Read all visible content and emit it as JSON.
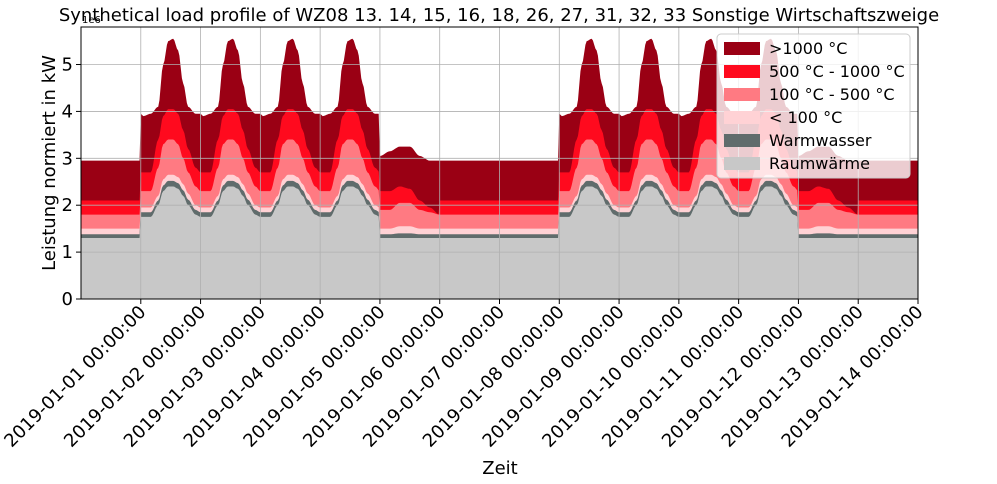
{
  "chart_data": {
    "type": "area",
    "stacked": true,
    "title": "Synthetical load profile of WZ08 13. 14, 15, 16, 18, 26, 27, 31, 32, 33 Sonstige Wirtschaftszweige",
    "xlabel": "Zeit",
    "ylabel": "Leistung normiert in kW",
    "y_scale_label": "1e6",
    "ylim": [
      0,
      5.8
    ],
    "yticks": [
      0,
      1,
      2,
      3,
      4,
      5
    ],
    "xticks": [
      "2019-01-01 00:00:00",
      "2019-01-02 00:00:00",
      "2019-01-03 00:00:00",
      "2019-01-04 00:00:00",
      "2019-01-05 00:00:00",
      "2019-01-06 00:00:00",
      "2019-01-07 00:00:00",
      "2019-01-08 00:00:00",
      "2019-01-09 00:00:00",
      "2019-01-10 00:00:00",
      "2019-01-11 00:00:00",
      "2019-01-12 00:00:00",
      "2019-01-13 00:00:00",
      "2019-01-14 00:00:00"
    ],
    "x_range": [
      "2018-12-31 00:00:00",
      "2019-01-14 00:00:00"
    ],
    "grid": true,
    "legend_position": "top-right",
    "day_profile_weekday": {
      "cumulative_tops_at_hours": [
        0,
        1,
        4,
        7,
        9,
        11,
        13,
        15,
        17,
        19,
        22,
        24
      ],
      "Raumwärme": [
        1.75,
        1.75,
        1.75,
        2.0,
        2.3,
        2.4,
        2.4,
        2.35,
        2.2,
        2.0,
        1.8,
        1.75
      ],
      "Warmwasser": [
        1.85,
        1.85,
        1.85,
        2.1,
        2.42,
        2.52,
        2.52,
        2.47,
        2.32,
        2.12,
        1.9,
        1.85
      ],
      "< 100 °C": [
        1.95,
        1.95,
        1.95,
        2.2,
        2.55,
        2.65,
        2.65,
        2.6,
        2.45,
        2.25,
        2.0,
        1.95
      ],
      "100 °C - 500 °C": [
        2.3,
        2.3,
        2.3,
        2.8,
        3.3,
        3.4,
        3.4,
        3.3,
        3.0,
        2.7,
        2.4,
        2.3
      ],
      "500 °C - 1000 °C": [
        2.7,
        2.7,
        2.7,
        3.4,
        3.9,
        4.05,
        4.05,
        3.95,
        3.6,
        3.2,
        2.8,
        2.7
      ],
      ">1000 °C": [
        3.95,
        3.9,
        3.95,
        4.1,
        5.0,
        5.5,
        5.55,
        5.3,
        4.6,
        4.1,
        3.95,
        3.95
      ]
    },
    "day_profile_saturday": {
      "cumulative_tops_at_hours": [
        0,
        4,
        8,
        12,
        16,
        20,
        24
      ],
      "Raumwärme": [
        1.3,
        1.3,
        1.3,
        1.3,
        1.3,
        1.3,
        1.3
      ],
      "Warmwasser": [
        1.38,
        1.38,
        1.4,
        1.4,
        1.38,
        1.38,
        1.38
      ],
      "< 100 °C": [
        1.5,
        1.5,
        1.55,
        1.55,
        1.5,
        1.5,
        1.5
      ],
      "100 °C - 500 °C": [
        1.9,
        1.9,
        2.05,
        2.05,
        1.9,
        1.85,
        1.8
      ],
      "500 °C - 1000 °C": [
        2.3,
        2.3,
        2.4,
        2.35,
        2.1,
        1.95,
        1.8
      ],
      ">1000 °C": [
        3.05,
        3.15,
        3.25,
        3.25,
        3.05,
        2.95,
        2.95
      ]
    },
    "day_profile_sunday_and_monday_holiday": {
      "cumulative_tops_at_hours": [
        0,
        24
      ],
      "Raumwärme": [
        1.3,
        1.3
      ],
      "Warmwasser": [
        1.38,
        1.38
      ],
      "< 100 °C": [
        1.5,
        1.5
      ],
      "100 °C - 500 °C": [
        1.8,
        1.8
      ],
      "500 °C - 1000 °C": [
        2.1,
        2.1
      ],
      ">1000 °C": [
        2.95,
        2.95
      ]
    },
    "series": [
      {
        "name": ">1000 °C",
        "color": "#9a0014"
      },
      {
        "name": "500 °C - 1000 °C",
        "color": "#ff0a1e"
      },
      {
        "name": "100 °C - 500 °C",
        "color": "#ff7a82"
      },
      {
        "name": "< 100 °C",
        "color": "#ffd2d5"
      },
      {
        "name": "Warmwasser",
        "color": "#606c6c"
      },
      {
        "name": "Raumwärme",
        "color": "#c8c8c8"
      }
    ]
  }
}
